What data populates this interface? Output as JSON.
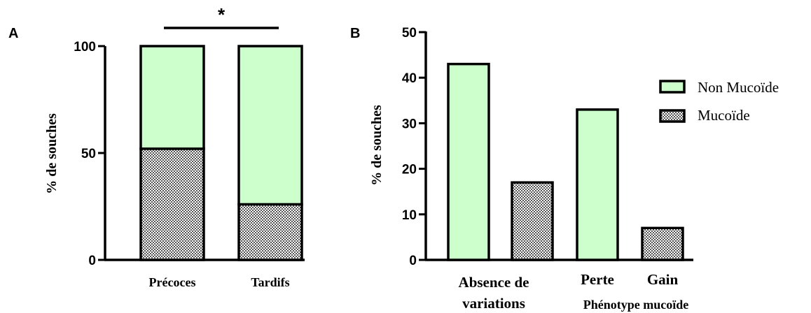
{
  "colors": {
    "non_mucoid": "#ccffcc",
    "mucoid_pattern": "#9a9a9a",
    "stroke": "#000000"
  },
  "legend": {
    "non_mucoid": "Non Mucoïde",
    "mucoid": "Mucoïde"
  },
  "chart_data": [
    {
      "panel": "A",
      "type": "bar",
      "stacked": true,
      "ylabel": "% de souches",
      "ylim": [
        0,
        100
      ],
      "yticks": [
        "0",
        "50",
        "100"
      ],
      "categories": [
        "Précoces",
        "Tardifs"
      ],
      "series": [
        {
          "name": "Mucoïde",
          "values": [
            52,
            26
          ],
          "fill": "pattern"
        },
        {
          "name": "Non Mucoïde",
          "values": [
            48,
            74
          ],
          "fill": "solid"
        }
      ],
      "significance": "*"
    },
    {
      "panel": "B",
      "type": "bar",
      "stacked": false,
      "ylabel": "% de souches",
      "xlabel": "Phénotype mucoïde",
      "ylim": [
        0,
        50
      ],
      "yticks": [
        "0",
        "10",
        "20",
        "30",
        "40",
        "50"
      ],
      "categories": [
        {
          "line1": "Absence de",
          "line2": "variations"
        },
        {
          "line1": "Perte",
          "line2": ""
        },
        {
          "line1": "Gain",
          "line2": ""
        }
      ],
      "bars": [
        {
          "value": 43,
          "fill": "solid"
        },
        {
          "value": 17,
          "fill": "pattern"
        },
        {
          "value": 33,
          "fill": "solid"
        },
        {
          "value": 7,
          "fill": "pattern"
        }
      ]
    }
  ]
}
